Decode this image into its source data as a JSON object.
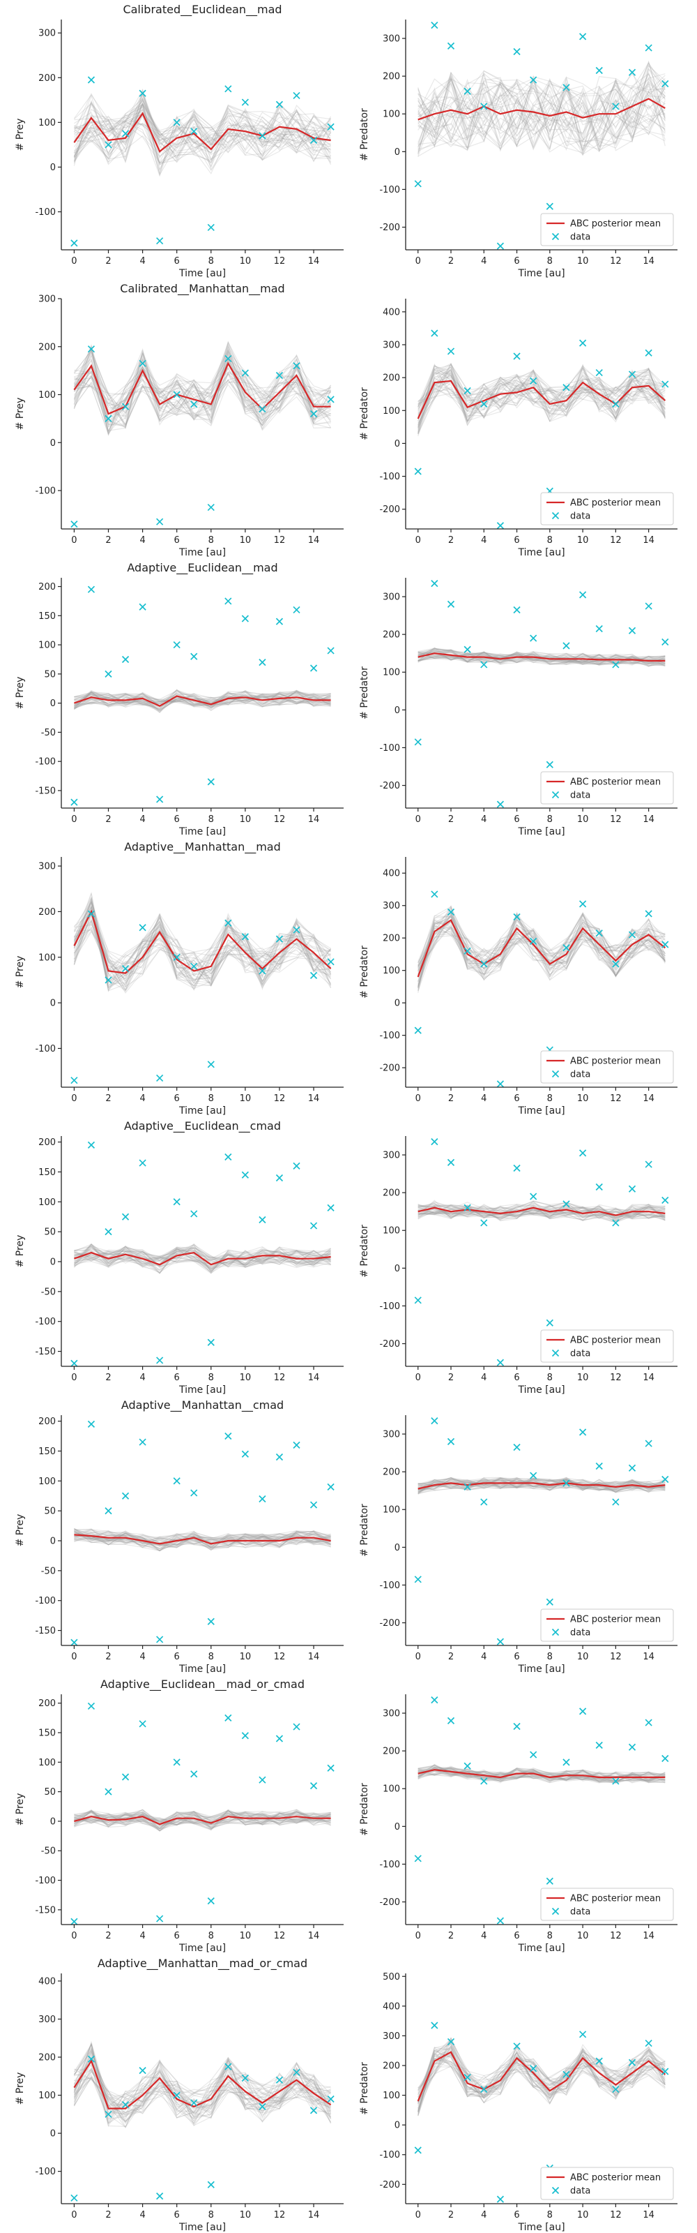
{
  "colors": {
    "mean": "#d62728",
    "data": "#17becf",
    "samples": "#9a9a9a"
  },
  "chart_data": [
    {
      "type": "line",
      "title": "Calibrated__Euclidean__mad",
      "xlabel": "Time [au]",
      "ylabel": "# Prey",
      "xlim": [
        -0.75,
        15.75
      ],
      "ylim": [
        -185,
        330
      ],
      "xticks": [
        0,
        2,
        4,
        6,
        8,
        10,
        12,
        14
      ],
      "yticks": [
        -100,
        0,
        100,
        200,
        300
      ],
      "x": [
        0,
        1,
        2,
        3,
        4,
        5,
        6,
        7,
        8,
        9,
        10,
        11,
        12,
        13,
        14,
        15
      ],
      "mean": [
        55,
        110,
        60,
        65,
        120,
        35,
        65,
        75,
        40,
        85,
        80,
        70,
        90,
        85,
        65,
        60
      ],
      "data": [
        -170,
        195,
        50,
        75,
        165,
        -165,
        100,
        80,
        -135,
        175,
        145,
        70,
        140,
        160,
        60,
        90
      ],
      "band": 55,
      "legend": false
    },
    {
      "type": "line",
      "title": "",
      "xlabel": "Time [au]",
      "ylabel": "# Predator",
      "xlim": [
        -0.75,
        15.75
      ],
      "ylim": [
        -260,
        350
      ],
      "xticks": [
        0,
        2,
        4,
        6,
        8,
        10,
        12,
        14
      ],
      "yticks": [
        -200,
        -100,
        0,
        100,
        200,
        300
      ],
      "x": [
        0,
        1,
        2,
        3,
        4,
        5,
        6,
        7,
        8,
        9,
        10,
        11,
        12,
        13,
        14,
        15
      ],
      "mean": [
        85,
        100,
        110,
        100,
        120,
        100,
        110,
        105,
        95,
        105,
        90,
        100,
        100,
        120,
        140,
        115
      ],
      "data": [
        -85,
        335,
        280,
        160,
        120,
        -250,
        265,
        190,
        -145,
        170,
        305,
        215,
        120,
        210,
        275,
        180
      ],
      "band": 100,
      "legend": true
    },
    {
      "type": "line",
      "title": "Calibrated__Manhattan__mad",
      "xlabel": "Time [au]",
      "ylabel": "# Prey",
      "xlim": [
        -0.75,
        15.75
      ],
      "ylim": [
        -180,
        300
      ],
      "xticks": [
        0,
        2,
        4,
        6,
        8,
        10,
        12,
        14
      ],
      "yticks": [
        -100,
        0,
        100,
        200,
        300
      ],
      "x": [
        0,
        1,
        2,
        3,
        4,
        5,
        6,
        7,
        8,
        9,
        10,
        11,
        12,
        13,
        14,
        15
      ],
      "mean": [
        110,
        160,
        60,
        75,
        150,
        80,
        100,
        90,
        80,
        165,
        105,
        70,
        105,
        140,
        75,
        75
      ],
      "data": [
        -170,
        195,
        50,
        75,
        165,
        -165,
        100,
        80,
        -135,
        175,
        145,
        70,
        140,
        160,
        60,
        90
      ],
      "band": 45,
      "legend": false
    },
    {
      "type": "line",
      "title": "",
      "xlabel": "Time [au]",
      "ylabel": "# Predator",
      "xlim": [
        -0.75,
        15.75
      ],
      "ylim": [
        -260,
        440
      ],
      "xticks": [
        0,
        2,
        4,
        6,
        8,
        10,
        12,
        14
      ],
      "yticks": [
        -200,
        -100,
        0,
        100,
        200,
        300,
        400
      ],
      "x": [
        0,
        1,
        2,
        3,
        4,
        5,
        6,
        7,
        8,
        9,
        10,
        11,
        12,
        13,
        14,
        15
      ],
      "mean": [
        75,
        185,
        190,
        110,
        130,
        150,
        155,
        170,
        120,
        130,
        185,
        150,
        120,
        170,
        175,
        130
      ],
      "data": [
        -85,
        335,
        280,
        160,
        120,
        -250,
        265,
        190,
        -145,
        170,
        305,
        215,
        120,
        210,
        275,
        180
      ],
      "band": 55,
      "legend": true
    },
    {
      "type": "line",
      "title": "Adaptive__Euclidean__mad",
      "xlabel": "Time [au]",
      "ylabel": "# Prey",
      "xlim": [
        -0.75,
        15.75
      ],
      "ylim": [
        -180,
        215
      ],
      "xticks": [
        0,
        2,
        4,
        6,
        8,
        10,
        12,
        14
      ],
      "yticks": [
        -150,
        -100,
        -50,
        0,
        50,
        100,
        150,
        200
      ],
      "x": [
        0,
        1,
        2,
        3,
        4,
        5,
        6,
        7,
        8,
        9,
        10,
        11,
        12,
        13,
        14,
        15
      ],
      "mean": [
        0,
        10,
        5,
        5,
        8,
        -5,
        12,
        5,
        -2,
        8,
        10,
        5,
        8,
        10,
        5,
        5
      ],
      "data": [
        -170,
        195,
        50,
        75,
        165,
        -165,
        100,
        80,
        -135,
        175,
        145,
        70,
        140,
        160,
        60,
        90
      ],
      "band": 12,
      "legend": false
    },
    {
      "type": "line",
      "title": "",
      "xlabel": "Time [au]",
      "ylabel": "# Predator",
      "xlim": [
        -0.75,
        15.75
      ],
      "ylim": [
        -260,
        350
      ],
      "xticks": [
        0,
        2,
        4,
        6,
        8,
        10,
        12,
        14
      ],
      "yticks": [
        -200,
        -100,
        0,
        100,
        200,
        300
      ],
      "x": [
        0,
        1,
        2,
        3,
        4,
        5,
        6,
        7,
        8,
        9,
        10,
        11,
        12,
        13,
        14,
        15
      ],
      "mean": [
        140,
        150,
        145,
        140,
        140,
        135,
        140,
        140,
        135,
        135,
        135,
        133,
        133,
        133,
        130,
        130
      ],
      "data": [
        -85,
        335,
        280,
        160,
        120,
        -250,
        265,
        190,
        -145,
        170,
        305,
        215,
        120,
        210,
        275,
        180
      ],
      "band": 15,
      "legend": true
    },
    {
      "type": "line",
      "title": "Adaptive__Manhattan__mad",
      "xlabel": "Time [au]",
      "ylabel": "# Prey",
      "xlim": [
        -0.75,
        15.75
      ],
      "ylim": [
        -185,
        320
      ],
      "xticks": [
        0,
        2,
        4,
        6,
        8,
        10,
        12,
        14
      ],
      "yticks": [
        -100,
        0,
        100,
        200,
        300
      ],
      "x": [
        0,
        1,
        2,
        3,
        4,
        5,
        6,
        7,
        8,
        9,
        10,
        11,
        12,
        13,
        14,
        15
      ],
      "mean": [
        125,
        200,
        70,
        65,
        100,
        155,
        95,
        70,
        80,
        150,
        110,
        75,
        110,
        140,
        110,
        75
      ],
      "data": [
        -170,
        195,
        50,
        75,
        165,
        -165,
        100,
        80,
        -135,
        175,
        145,
        70,
        140,
        160,
        60,
        90
      ],
      "band": 45,
      "legend": false
    },
    {
      "type": "line",
      "title": "",
      "xlabel": "Time [au]",
      "ylabel": "# Predator",
      "xlim": [
        -0.75,
        15.75
      ],
      "ylim": [
        -260,
        450
      ],
      "xticks": [
        0,
        2,
        4,
        6,
        8,
        10,
        12,
        14
      ],
      "yticks": [
        -200,
        -100,
        0,
        100,
        200,
        300,
        400
      ],
      "x": [
        0,
        1,
        2,
        3,
        4,
        5,
        6,
        7,
        8,
        9,
        10,
        11,
        12,
        13,
        14,
        15
      ],
      "mean": [
        80,
        220,
        255,
        150,
        120,
        150,
        230,
        180,
        120,
        150,
        230,
        180,
        130,
        180,
        210,
        170
      ],
      "data": [
        -85,
        335,
        280,
        160,
        120,
        -250,
        265,
        190,
        -145,
        170,
        305,
        215,
        120,
        210,
        275,
        180
      ],
      "band": 50,
      "legend": true
    },
    {
      "type": "line",
      "title": "Adaptive__Euclidean__cmad",
      "xlabel": "Time [au]",
      "ylabel": "# Prey",
      "xlim": [
        -0.75,
        15.75
      ],
      "ylim": [
        -175,
        210
      ],
      "xticks": [
        0,
        2,
        4,
        6,
        8,
        10,
        12,
        14
      ],
      "yticks": [
        -150,
        -100,
        -50,
        0,
        50,
        100,
        150,
        200
      ],
      "x": [
        0,
        1,
        2,
        3,
        4,
        5,
        6,
        7,
        8,
        9,
        10,
        11,
        12,
        13,
        14,
        15
      ],
      "mean": [
        5,
        15,
        5,
        12,
        5,
        -5,
        10,
        15,
        -5,
        5,
        5,
        10,
        10,
        5,
        5,
        8
      ],
      "data": [
        -170,
        195,
        50,
        75,
        165,
        -165,
        100,
        80,
        -135,
        175,
        145,
        70,
        140,
        160,
        60,
        90
      ],
      "band": 15,
      "legend": false
    },
    {
      "type": "line",
      "title": "",
      "xlabel": "Time [au]",
      "ylabel": "# Predator",
      "xlim": [
        -0.75,
        15.75
      ],
      "ylim": [
        -260,
        350
      ],
      "xticks": [
        0,
        2,
        4,
        6,
        8,
        10,
        12,
        14
      ],
      "yticks": [
        -200,
        -100,
        0,
        100,
        200,
        300
      ],
      "x": [
        0,
        1,
        2,
        3,
        4,
        5,
        6,
        7,
        8,
        9,
        10,
        11,
        12,
        13,
        14,
        15
      ],
      "mean": [
        150,
        160,
        150,
        155,
        150,
        145,
        150,
        160,
        150,
        155,
        145,
        150,
        140,
        150,
        150,
        145
      ],
      "data": [
        -85,
        335,
        280,
        160,
        120,
        -250,
        265,
        190,
        -145,
        170,
        305,
        215,
        120,
        210,
        275,
        180
      ],
      "band": 20,
      "legend": true
    },
    {
      "type": "line",
      "title": "Adaptive__Manhattan__cmad",
      "xlabel": "Time [au]",
      "ylabel": "# Prey",
      "xlim": [
        -0.75,
        15.75
      ],
      "ylim": [
        -175,
        210
      ],
      "xticks": [
        0,
        2,
        4,
        6,
        8,
        10,
        12,
        14
      ],
      "yticks": [
        -150,
        -100,
        -50,
        0,
        50,
        100,
        150,
        200
      ],
      "x": [
        0,
        1,
        2,
        3,
        4,
        5,
        6,
        7,
        8,
        9,
        10,
        11,
        12,
        13,
        14,
        15
      ],
      "mean": [
        10,
        8,
        5,
        5,
        0,
        -5,
        0,
        5,
        -5,
        0,
        0,
        0,
        0,
        5,
        5,
        0
      ],
      "data": [
        -170,
        195,
        50,
        75,
        165,
        -165,
        100,
        80,
        -135,
        175,
        145,
        70,
        140,
        160,
        60,
        90
      ],
      "band": 12,
      "legend": false
    },
    {
      "type": "line",
      "title": "",
      "xlabel": "Time [au]",
      "ylabel": "# Predator",
      "xlim": [
        -0.75,
        15.75
      ],
      "ylim": [
        -260,
        350
      ],
      "xticks": [
        0,
        2,
        4,
        6,
        8,
        10,
        12,
        14
      ],
      "yticks": [
        -200,
        -100,
        0,
        100,
        200,
        300
      ],
      "x": [
        0,
        1,
        2,
        3,
        4,
        5,
        6,
        7,
        8,
        9,
        10,
        11,
        12,
        13,
        14,
        15
      ],
      "mean": [
        155,
        165,
        170,
        165,
        170,
        170,
        170,
        170,
        165,
        170,
        165,
        165,
        160,
        165,
        160,
        165
      ],
      "data": [
        -85,
        335,
        280,
        160,
        120,
        -250,
        265,
        190,
        -145,
        170,
        305,
        215,
        120,
        210,
        275,
        180
      ],
      "band": 15,
      "legend": true
    },
    {
      "type": "line",
      "title": "Adaptive__Euclidean__mad_or_cmad",
      "xlabel": "Time [au]",
      "ylabel": "# Prey",
      "xlim": [
        -0.75,
        15.75
      ],
      "ylim": [
        -175,
        215
      ],
      "xticks": [
        0,
        2,
        4,
        6,
        8,
        10,
        12,
        14
      ],
      "yticks": [
        -150,
        -100,
        -50,
        0,
        50,
        100,
        150,
        200
      ],
      "x": [
        0,
        1,
        2,
        3,
        4,
        5,
        6,
        7,
        8,
        9,
        10,
        11,
        12,
        13,
        14,
        15
      ],
      "mean": [
        0,
        8,
        2,
        3,
        8,
        -5,
        5,
        5,
        -3,
        8,
        5,
        5,
        5,
        8,
        5,
        5
      ],
      "data": [
        -170,
        195,
        50,
        75,
        165,
        -165,
        100,
        80,
        -135,
        175,
        145,
        70,
        140,
        160,
        60,
        90
      ],
      "band": 12,
      "legend": false
    },
    {
      "type": "line",
      "title": "",
      "xlabel": "Time [au]",
      "ylabel": "# Predator",
      "xlim": [
        -0.75,
        15.75
      ],
      "ylim": [
        -260,
        350
      ],
      "xticks": [
        0,
        2,
        4,
        6,
        8,
        10,
        12,
        14
      ],
      "yticks": [
        -200,
        -100,
        0,
        100,
        200,
        300
      ],
      "x": [
        0,
        1,
        2,
        3,
        4,
        5,
        6,
        7,
        8,
        9,
        10,
        11,
        12,
        13,
        14,
        15
      ],
      "mean": [
        140,
        150,
        145,
        140,
        135,
        130,
        140,
        140,
        130,
        135,
        135,
        130,
        130,
        130,
        130,
        130
      ],
      "data": [
        -85,
        335,
        280,
        160,
        120,
        -250,
        265,
        190,
        -145,
        170,
        305,
        215,
        120,
        210,
        275,
        180
      ],
      "band": 15,
      "legend": true
    },
    {
      "type": "line",
      "title": "Adaptive__Manhattan__mad_or_cmad",
      "xlabel": "Time [au]",
      "ylabel": "# Prey",
      "xlim": [
        -0.75,
        15.75
      ],
      "ylim": [
        -185,
        420
      ],
      "xticks": [
        0,
        2,
        4,
        6,
        8,
        10,
        12,
        14
      ],
      "yticks": [
        -100,
        0,
        100,
        200,
        300,
        400
      ],
      "x": [
        0,
        1,
        2,
        3,
        4,
        5,
        6,
        7,
        8,
        9,
        10,
        11,
        12,
        13,
        14,
        15
      ],
      "mean": [
        120,
        190,
        65,
        65,
        100,
        145,
        90,
        70,
        90,
        150,
        110,
        80,
        110,
        140,
        105,
        75
      ],
      "data": [
        -170,
        195,
        50,
        75,
        165,
        -165,
        100,
        80,
        -135,
        175,
        145,
        70,
        140,
        160,
        60,
        90
      ],
      "band": 50,
      "legend": false
    },
    {
      "type": "line",
      "title": "",
      "xlabel": "Time [au]",
      "ylabel": "# Predator",
      "xlim": [
        -0.75,
        15.75
      ],
      "ylim": [
        -265,
        510
      ],
      "xticks": [
        0,
        2,
        4,
        6,
        8,
        10,
        12,
        14
      ],
      "yticks": [
        -200,
        -100,
        0,
        100,
        200,
        300,
        400,
        500
      ],
      "x": [
        0,
        1,
        2,
        3,
        4,
        5,
        6,
        7,
        8,
        9,
        10,
        11,
        12,
        13,
        14,
        15
      ],
      "mean": [
        80,
        215,
        245,
        140,
        120,
        150,
        225,
        175,
        115,
        150,
        225,
        175,
        135,
        175,
        215,
        170
      ],
      "data": [
        -85,
        335,
        280,
        160,
        120,
        -250,
        265,
        190,
        -145,
        170,
        305,
        215,
        120,
        210,
        275,
        180
      ],
      "band": 50,
      "legend": true
    }
  ],
  "legend": {
    "mean_label": "ABC posterior mean",
    "data_label": "data"
  }
}
